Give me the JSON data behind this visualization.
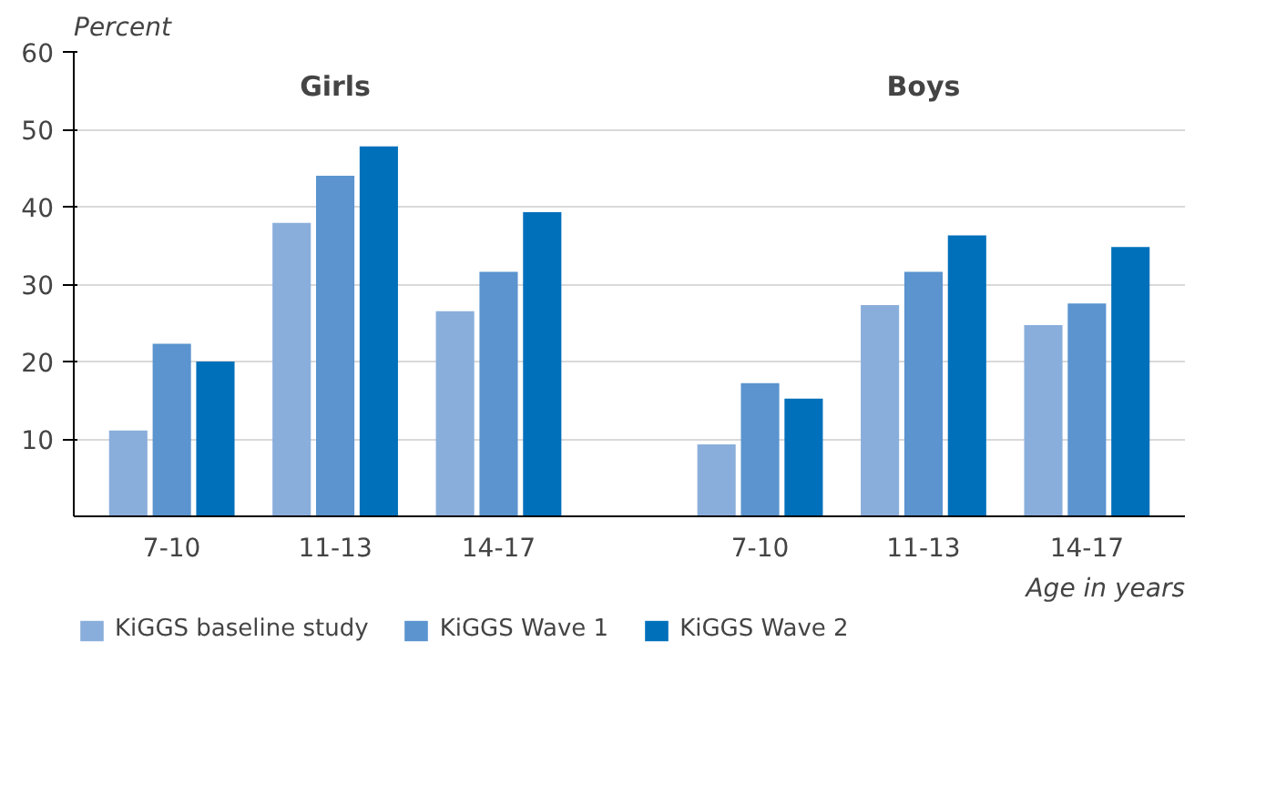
{
  "chart_data": {
    "type": "bar",
    "ylabel": "Percent",
    "xlabel": "Age in years",
    "categories": [
      "7-10",
      "11-13",
      "14-17",
      "7-10",
      "11-13",
      "14-17"
    ],
    "series": [
      {
        "name": "KiGGS baseline study",
        "color": "#8aaedb",
        "values": [
          11.1,
          37.9,
          26.5,
          9.3,
          27.3,
          24.7
        ]
      },
      {
        "name": "KiGGS Wave 1",
        "color": "#5b94cf",
        "values": [
          22.3,
          44.0,
          31.6,
          17.2,
          31.6,
          27.5
        ]
      },
      {
        "name": "KiGGS Wave 2",
        "color": "#0070bb",
        "values": [
          20.0,
          47.8,
          39.3,
          15.2,
          36.3,
          34.8
        ]
      }
    ],
    "annotations": [
      "Girls",
      "Boys"
    ],
    "ylim": [
      0,
      60
    ],
    "yticks": [
      10,
      20,
      30,
      40,
      50,
      60
    ],
    "grid": "y",
    "legend": "bottom"
  }
}
